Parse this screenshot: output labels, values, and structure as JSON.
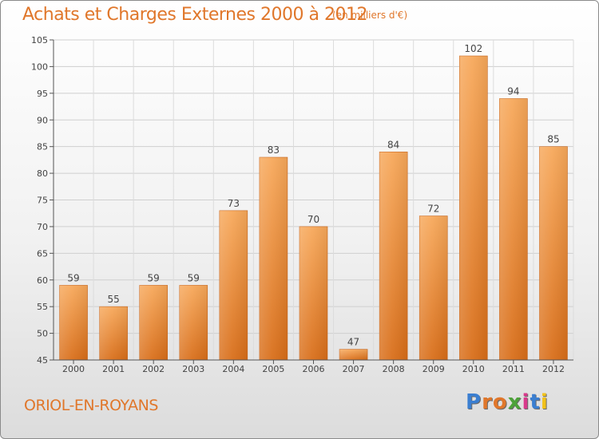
{
  "chart_data": {
    "type": "bar",
    "title": "Achats et Charges Externes 2000 à 2012",
    "subtitle": "(en milliers d'€)",
    "categories": [
      "2000",
      "2001",
      "2002",
      "2003",
      "2004",
      "2005",
      "2006",
      "2007",
      "2008",
      "2009",
      "2010",
      "2011",
      "2012"
    ],
    "values": [
      59,
      55,
      59,
      59,
      73,
      83,
      70,
      47,
      84,
      72,
      102,
      94,
      85
    ],
    "ylim": [
      45,
      105
    ],
    "yticks": [
      45,
      50,
      55,
      60,
      65,
      70,
      75,
      80,
      85,
      90,
      95,
      100,
      105
    ],
    "grid": true,
    "bar_color": "#f0923a"
  },
  "footer": {
    "location": "ORIOL-EN-ROYANS",
    "brand": "Proxiti",
    "brand_colors": [
      "#3b7fd1",
      "#e0772b",
      "#e0772b",
      "#4da23a",
      "#d93a8c",
      "#3b7fd1",
      "#f2c21a"
    ]
  }
}
